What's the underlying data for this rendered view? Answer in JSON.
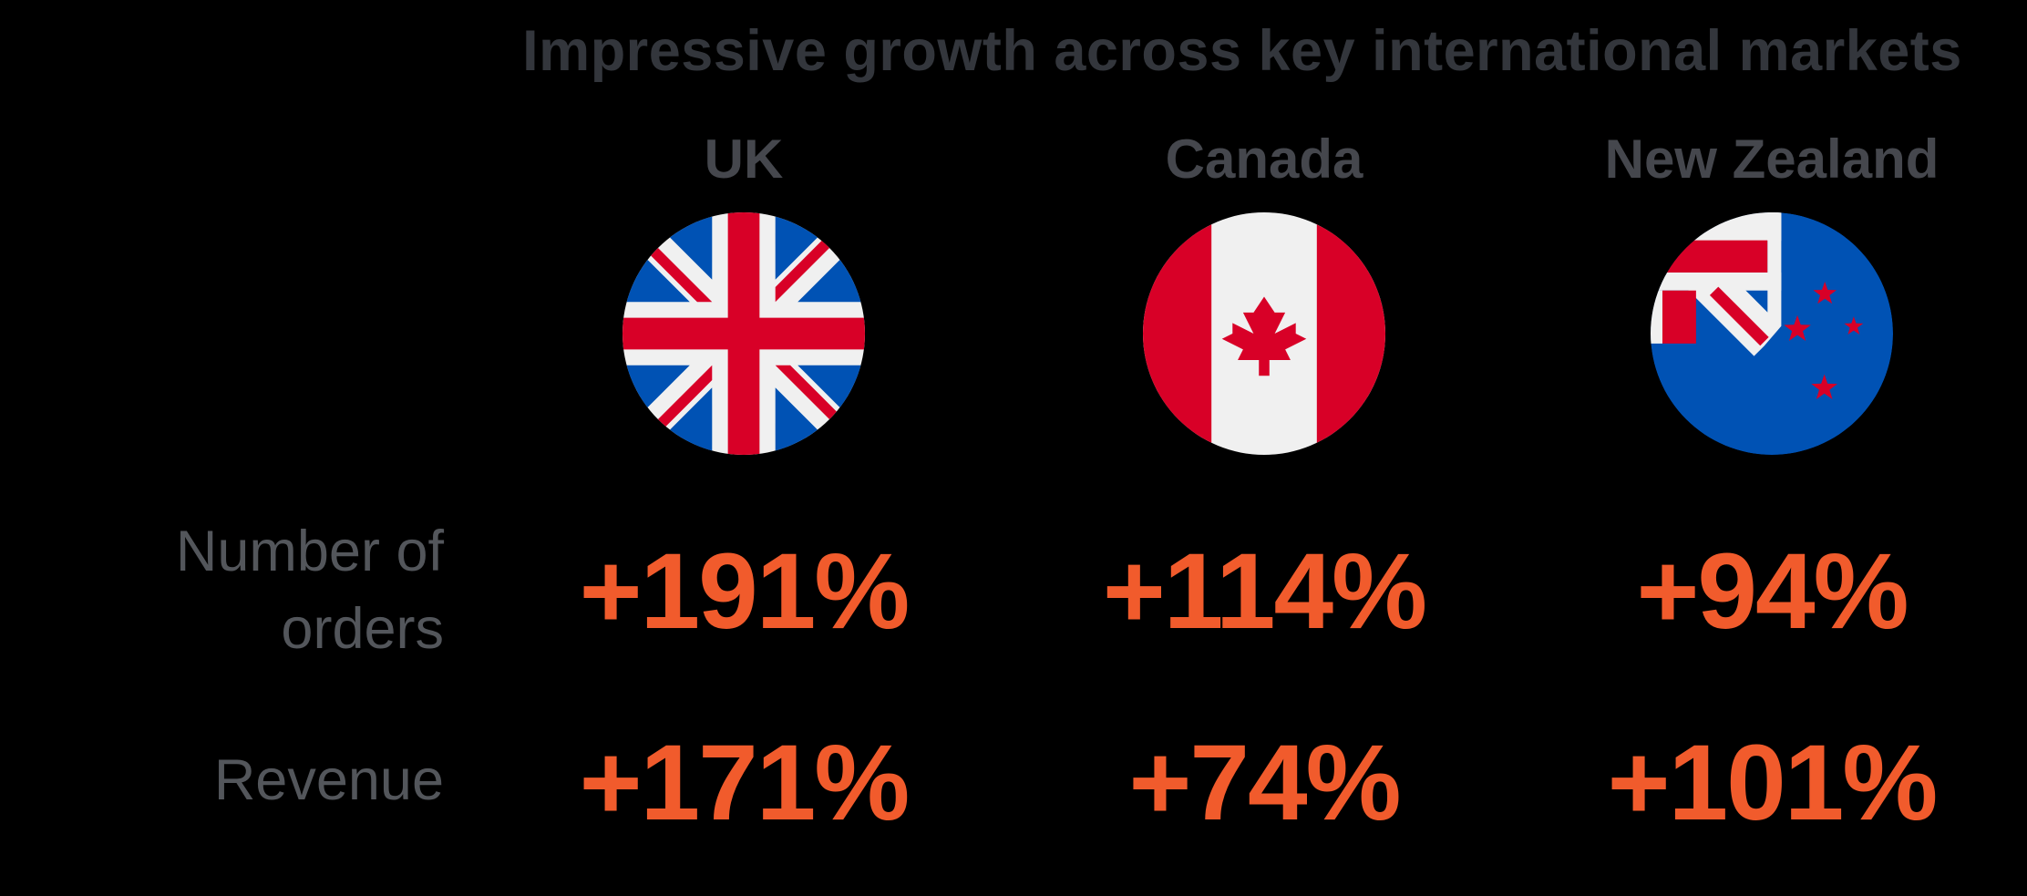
{
  "title": "Impressive growth across key international markets",
  "columns": [
    {
      "label": "UK",
      "flag": "uk-flag"
    },
    {
      "label": "Canada",
      "flag": "canada-flag"
    },
    {
      "label": "New Zealand",
      "flag": "new-zealand-flag"
    }
  ],
  "rows": [
    {
      "label": "Number of orders",
      "label_lines": [
        "Number of",
        "orders"
      ],
      "values": [
        "+191%",
        "+114%",
        "+94%"
      ]
    },
    {
      "label": "Revenue",
      "label_lines": [
        "Revenue"
      ],
      "values": [
        "+171%",
        "+74%",
        "+101%"
      ]
    }
  ],
  "colors": {
    "background": "#000000",
    "title_text": "#33363C",
    "header_text": "#45474D",
    "label_text": "#53565B",
    "value_text": "#F15B2C",
    "flag_red": "#D80027",
    "flag_blue": "#0052B4",
    "flag_white": "#F0F0F0"
  },
  "chart_data": {
    "type": "table",
    "title": "Impressive growth across key international markets",
    "categories": [
      "UK",
      "Canada",
      "New Zealand"
    ],
    "series": [
      {
        "name": "Number of orders",
        "values": [
          191,
          114,
          94
        ],
        "labels": [
          "+191%",
          "+114%",
          "+94%"
        ]
      },
      {
        "name": "Revenue",
        "values": [
          171,
          74,
          101
        ],
        "labels": [
          "+171%",
          "+74%",
          "+101%"
        ]
      }
    ],
    "unit": "percent growth year-over-year",
    "legend_position": "none",
    "grid": false
  }
}
